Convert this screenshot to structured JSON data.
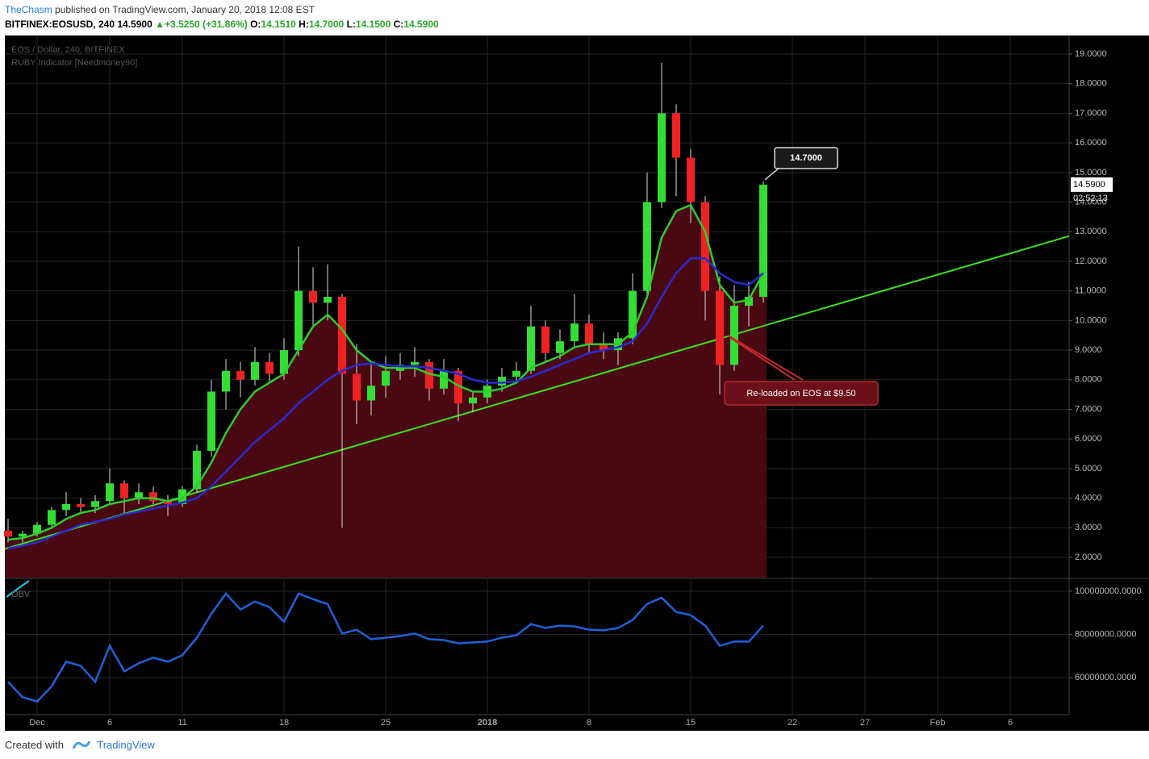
{
  "header": {
    "author": "TheChasm",
    "published": "published on TradingView.com, January 20, 2018 12:08 EST",
    "symbol": "BITFINEX:EOSUSD, 240",
    "last": "14.5900",
    "arrow": "▲",
    "change": "+3.5250 (+31.86%)",
    "o_label": "O:",
    "o": "14.1510",
    "h_label": "H:",
    "h": "14.7000",
    "l_label": "L:",
    "l": "14.1500",
    "c_label": "C:",
    "c": "14.5900"
  },
  "footer": {
    "created": "Created with",
    "brand": "TradingView"
  },
  "chart_data": [
    {
      "type": "candlestick",
      "title": "EOS / Dollar, 240, BITFINEX",
      "subtitle": "RUBY Indicator [Needmoney90]",
      "categories": [
        null,
        null,
        "Dec",
        null,
        null,
        null,
        null,
        "6",
        null,
        null,
        null,
        null,
        "11",
        null,
        null,
        null,
        null,
        null,
        null,
        "18",
        null,
        null,
        null,
        null,
        null,
        null,
        "25",
        null,
        null,
        null,
        null,
        null,
        null,
        "2018",
        null,
        null,
        null,
        null,
        null,
        null,
        "8",
        null,
        null,
        null,
        null,
        null,
        null,
        "15",
        null,
        null,
        null,
        null,
        null,
        null,
        "22",
        null,
        null,
        null,
        null,
        "27",
        null,
        null,
        null,
        null,
        "Feb",
        null,
        null,
        null,
        null,
        "6",
        null,
        null,
        null
      ],
      "open": [
        2.9,
        2.7,
        2.8,
        3.1,
        3.6,
        3.8,
        3.7,
        3.9,
        4.5,
        4.0,
        4.2,
        3.9,
        3.8,
        4.3,
        5.6,
        7.6,
        8.3,
        8.0,
        8.6,
        8.2,
        9.0,
        11.0,
        10.6,
        10.8,
        8.2,
        7.3,
        7.8,
        8.3,
        8.5,
        8.6,
        7.7,
        8.3,
        7.2,
        7.4,
        7.8,
        8.1,
        8.3,
        9.8,
        8.9,
        9.3,
        9.9,
        9.2,
        9.0,
        9.4,
        11.0,
        14.0,
        17.0,
        15.5,
        14.0,
        11.0,
        8.5,
        10.5,
        10.8,
        null,
        null,
        null,
        null,
        null,
        null,
        null,
        null,
        null,
        null,
        null,
        null,
        null,
        null,
        null,
        null,
        null,
        null,
        null,
        null
      ],
      "high": [
        3.3,
        2.9,
        3.2,
        3.7,
        4.2,
        4.0,
        4.1,
        5.0,
        4.6,
        4.5,
        4.4,
        4.1,
        4.4,
        5.8,
        8.0,
        8.7,
        8.6,
        9.1,
        8.9,
        9.4,
        12.5,
        11.8,
        11.9,
        10.9,
        9.2,
        8.6,
        8.8,
        8.9,
        9.1,
        8.7,
        8.7,
        8.4,
        7.6,
        8.0,
        8.4,
        8.6,
        10.5,
        10.0,
        9.7,
        10.9,
        10.2,
        9.6,
        9.6,
        11.6,
        15.0,
        18.7,
        17.3,
        15.8,
        14.2,
        11.5,
        11.2,
        11.3,
        14.7,
        null,
        null,
        null,
        null,
        null,
        null,
        null,
        null,
        null,
        null,
        null,
        null,
        null,
        null,
        null,
        null,
        null,
        null,
        null,
        null
      ],
      "low": [
        2.5,
        2.5,
        2.7,
        3.0,
        3.4,
        3.5,
        3.5,
        3.8,
        3.5,
        3.8,
        3.8,
        3.4,
        3.7,
        4.2,
        5.4,
        7.0,
        7.4,
        7.8,
        7.9,
        8.0,
        8.8,
        9.8,
        10.0,
        3.0,
        6.5,
        6.8,
        7.4,
        8.0,
        8.1,
        7.3,
        7.5,
        6.6,
        6.9,
        7.2,
        7.6,
        7.9,
        8.2,
        8.6,
        8.7,
        9.1,
        8.9,
        8.7,
        8.5,
        9.2,
        10.8,
        13.8,
        14.2,
        13.3,
        10.0,
        7.5,
        8.3,
        9.8,
        10.6,
        null,
        null,
        null,
        null,
        null,
        null,
        null,
        null,
        null,
        null,
        null,
        null,
        null,
        null,
        null,
        null,
        null,
        null,
        null,
        null
      ],
      "close": [
        2.7,
        2.8,
        3.1,
        3.6,
        3.8,
        3.7,
        3.9,
        4.5,
        4.0,
        4.2,
        3.9,
        3.8,
        4.3,
        5.6,
        7.6,
        8.3,
        8.0,
        8.6,
        8.2,
        9.0,
        11.0,
        10.6,
        10.8,
        8.2,
        7.3,
        7.8,
        8.3,
        8.5,
        8.6,
        7.7,
        8.3,
        7.2,
        7.4,
        7.8,
        8.1,
        8.3,
        9.8,
        8.9,
        9.3,
        9.9,
        9.2,
        9.0,
        9.4,
        11.0,
        14.0,
        17.0,
        15.5,
        14.0,
        11.0,
        8.5,
        10.5,
        10.8,
        14.59,
        null,
        null,
        null,
        null,
        null,
        null,
        null,
        null,
        null,
        null,
        null,
        null,
        null,
        null,
        null,
        null,
        null,
        null,
        null,
        null
      ],
      "up_color": "#33dd33",
      "down_color": "#ee2222",
      "fill_color": "#4a0812",
      "lines": [
        {
          "color": "#2fcc2f",
          "values": [
            2.6,
            2.65,
            2.8,
            3.0,
            3.3,
            3.5,
            3.6,
            3.8,
            3.9,
            4.0,
            4.0,
            3.9,
            4.0,
            4.4,
            5.2,
            6.2,
            7.0,
            7.6,
            7.9,
            8.2,
            9.0,
            9.8,
            10.2,
            9.7,
            9.0,
            8.6,
            8.4,
            8.4,
            8.4,
            8.2,
            8.1,
            7.8,
            7.6,
            7.6,
            7.7,
            7.9,
            8.4,
            8.6,
            8.8,
            9.1,
            9.2,
            9.2,
            9.2,
            9.6,
            10.8,
            12.8,
            13.7,
            13.9,
            13.0,
            11.2,
            10.6,
            10.7,
            11.6,
            null,
            null,
            null,
            null,
            null,
            null,
            null,
            null,
            null,
            null,
            null,
            null,
            null,
            null,
            null,
            null,
            null,
            null,
            null,
            null
          ]
        },
        {
          "color": "#2a2ad0",
          "values": [
            2.3,
            2.4,
            2.5,
            2.7,
            2.9,
            3.1,
            3.2,
            3.3,
            3.45,
            3.55,
            3.65,
            3.75,
            3.85,
            4.0,
            4.4,
            4.9,
            5.4,
            5.9,
            6.3,
            6.7,
            7.2,
            7.6,
            8.0,
            8.3,
            8.5,
            8.55,
            8.5,
            8.45,
            8.45,
            8.4,
            8.3,
            8.2,
            8.0,
            7.9,
            7.9,
            7.95,
            8.1,
            8.3,
            8.5,
            8.7,
            8.9,
            9.0,
            9.1,
            9.3,
            9.9,
            10.8,
            11.6,
            12.1,
            12.1,
            11.6,
            11.3,
            11.2,
            11.6,
            null,
            null,
            null,
            null,
            null,
            null,
            null,
            null,
            null,
            null,
            null,
            null,
            null,
            null,
            null,
            null,
            null,
            null,
            null,
            null
          ]
        }
      ],
      "trendline": {
        "color": "#3de01f",
        "values": [
          2.32,
          12.7
        ]
      },
      "ylim": [
        1.32,
        19.6
      ],
      "yticks": [
        {
          "value": 2,
          "label": "2.0000"
        },
        {
          "value": 3,
          "label": "3.0000"
        },
        {
          "value": 4,
          "label": "4.0000"
        },
        {
          "value": 5,
          "label": "5.0000"
        },
        {
          "value": 6,
          "label": "6.0000"
        },
        {
          "value": 7,
          "label": "7.0000"
        },
        {
          "value": 8,
          "label": "8.0000"
        },
        {
          "value": 9,
          "label": "9.0000"
        },
        {
          "value": 10,
          "label": "10.0000"
        },
        {
          "value": 11,
          "label": "11.0000"
        },
        {
          "value": 12,
          "label": "12.0000"
        },
        {
          "value": 13,
          "label": "13.0000"
        },
        {
          "value": 14,
          "label": "14.0000"
        },
        {
          "value": 15,
          "label": "15.0000"
        },
        {
          "value": 16,
          "label": "16.0000"
        },
        {
          "value": 17,
          "label": "17.0000"
        },
        {
          "value": 18,
          "label": "18.0000"
        },
        {
          "value": 19,
          "label": "19.0000"
        }
      ],
      "grid": true,
      "price_marker": {
        "value": 14.59,
        "label": "14.5900",
        "timer": "02:52:13"
      },
      "high_callout": {
        "value": 14.7,
        "label": "14.7000"
      },
      "note": {
        "value": 9.5,
        "text": "Re-loaded on EOS at $9.50"
      }
    },
    {
      "type": "line",
      "title": "OBV",
      "color": "#2060d8",
      "values": [
        58100000,
        51000000,
        49000000,
        56000000,
        67400000,
        65500000,
        58100000,
        74800000,
        63000000,
        66700000,
        69300000,
        67400000,
        70400000,
        78500000,
        89600000,
        98900000,
        91500000,
        95200000,
        92600000,
        85900000,
        98900000,
        96300000,
        94100000,
        80400000,
        82200000,
        77800000,
        78500000,
        79300000,
        80400000,
        77800000,
        77400000,
        75900000,
        76300000,
        76700000,
        78500000,
        79600000,
        84800000,
        83000000,
        84100000,
        83700000,
        82200000,
        81900000,
        83000000,
        86700000,
        94100000,
        97000000,
        90400000,
        88900000,
        84100000,
        74800000,
        76700000,
        76700000,
        84100000,
        null,
        null,
        null,
        null,
        null,
        null,
        null,
        null,
        null,
        null,
        null,
        null,
        null,
        null,
        null,
        null,
        null,
        null,
        null,
        null
      ],
      "ylim": [
        43300000,
        105200000
      ],
      "yticks": [
        {
          "value": 60000000,
          "label": "60000000.0000"
        },
        {
          "value": 80000000,
          "label": "80000000.0000"
        },
        {
          "value": 100000000,
          "label": "100000000.0000"
        }
      ],
      "grid": true
    }
  ]
}
